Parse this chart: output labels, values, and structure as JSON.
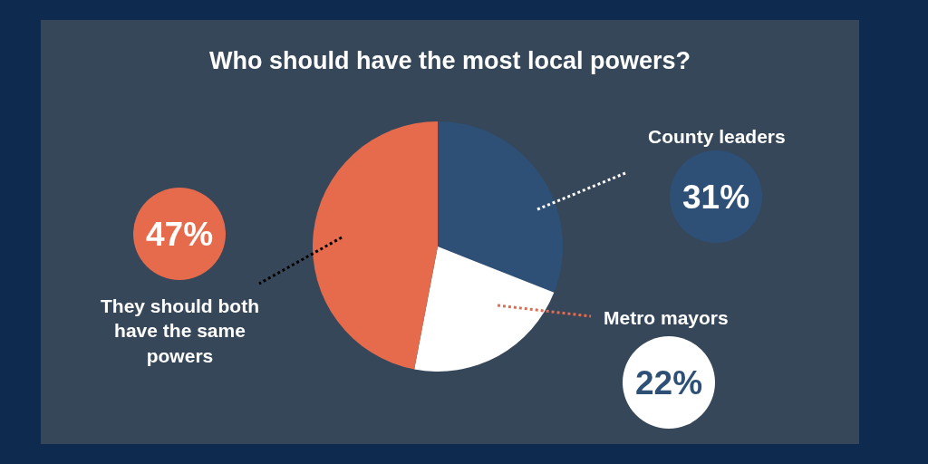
{
  "chart_data": {
    "type": "pie",
    "title": "Who should have the most local powers?",
    "categories": [
      "County leaders",
      "Metro mayors",
      "They should both have the same powers"
    ],
    "values": [
      31,
      22,
      47
    ],
    "colors": [
      "#2e5077",
      "#ffffff",
      "#e66b4c"
    ],
    "value_labels": [
      "31%",
      "22%",
      "47%"
    ]
  }
}
